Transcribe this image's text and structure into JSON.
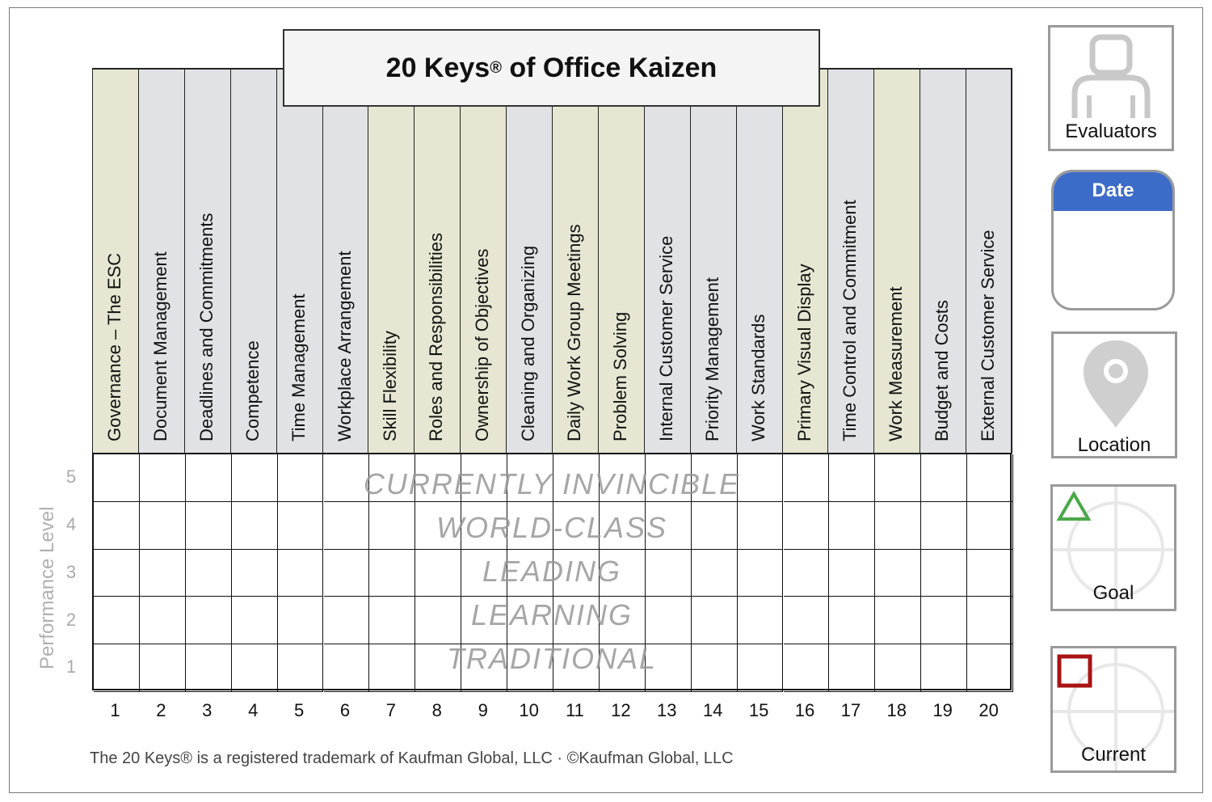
{
  "title": {
    "main": "20 Keys",
    "reg": "®",
    "rest": " of Office Kaizen"
  },
  "keys": [
    {
      "num": "1",
      "label": "Governance – The ESC",
      "color": "#e6e6d2"
    },
    {
      "num": "2",
      "label": "Document Management",
      "color": "#e1e2e6"
    },
    {
      "num": "3",
      "label": "Deadlines and Commitments",
      "color": "#e1e2e6"
    },
    {
      "num": "4",
      "label": "Competence",
      "color": "#e1e2e6"
    },
    {
      "num": "5",
      "label": "Time Management",
      "color": "#e1e2e6"
    },
    {
      "num": "6",
      "label": "Workplace Arrangement",
      "color": "#e1e2e6"
    },
    {
      "num": "7",
      "label": "Skill Flexibility",
      "color": "#e6e6d2"
    },
    {
      "num": "8",
      "label": "Roles and Responsibilities",
      "color": "#e6e6d2"
    },
    {
      "num": "9",
      "label": "Ownership of Objectives",
      "color": "#e6e6d2"
    },
    {
      "num": "10",
      "label": "Cleaning and Organizing",
      "color": "#e1e2e6"
    },
    {
      "num": "11",
      "label": "Daily Work Group Meetings",
      "color": "#e6e6d2"
    },
    {
      "num": "12",
      "label": "Problem Solving",
      "color": "#e6e6d2"
    },
    {
      "num": "13",
      "label": "Internal Customer Service",
      "color": "#e1e2e6"
    },
    {
      "num": "14",
      "label": "Priority Management",
      "color": "#e1e2e6"
    },
    {
      "num": "15",
      "label": "Work Standards",
      "color": "#e1e2e6"
    },
    {
      "num": "16",
      "label": "Primary Visual Display",
      "color": "#e6e6d2"
    },
    {
      "num": "17",
      "label": "Time Control and Commitment",
      "color": "#e1e2e6"
    },
    {
      "num": "18",
      "label": "Work Measurement",
      "color": "#e6e6d2"
    },
    {
      "num": "19",
      "label": "Budget and Costs",
      "color": "#e1e2e6"
    },
    {
      "num": "20",
      "label": "External Customer Service",
      "color": "#e1e2e6"
    }
  ],
  "levels": [
    {
      "num": "5",
      "name": "CURRENTLY INVINCIBLE"
    },
    {
      "num": "4",
      "name": "WORLD-CLASS"
    },
    {
      "num": "3",
      "name": "LEADING"
    },
    {
      "num": "2",
      "name": "LEARNING"
    },
    {
      "num": "1",
      "name": "TRADITIONAL"
    }
  ],
  "axis_title": "Performance Level",
  "footer": "The 20 Keys® is a registered trademark of Kaufman Global, LLC · ©Kaufman Global, LLC",
  "side_panel": {
    "evaluators": "Evaluators",
    "date": "Date",
    "location": "Location",
    "goal": "Goal",
    "current": "Current"
  },
  "colors": {
    "date_header": "#3d6cc8",
    "goal_marker": "#4aa84a",
    "current_marker": "#a81414"
  }
}
